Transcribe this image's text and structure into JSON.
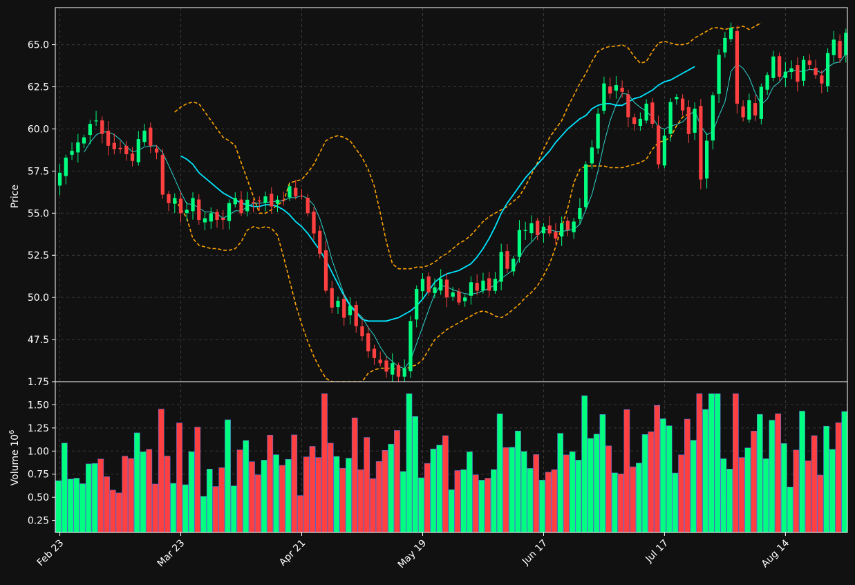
{
  "colors": {
    "background": "#111111",
    "up": "#00ff80",
    "down": "#ff4040",
    "vol_up": "#00ff80",
    "vol_down": "#ff4040",
    "vol_edge": "#5a6fd8",
    "ma_slow": "#00e5ff",
    "ma_fast": "#2fd6cf",
    "bollinger": "#ffa500",
    "grid": "#3a3a3a",
    "axis": "#ffffff"
  },
  "chart_data": {
    "type": "candlestick",
    "price_panel": {
      "ylabel": "Price",
      "ylim": [
        45.0,
        67.2
      ],
      "yticks": [
        "47.5",
        "50.0",
        "52.5",
        "55.0",
        "57.5",
        "60.0",
        "62.5",
        "65.0"
      ],
      "grid": true
    },
    "volume_panel": {
      "ylabel": "Volume  10",
      "ylabel_exponent": "6",
      "ylim": [
        0.12,
        1.75
      ],
      "yticks": [
        "0.25",
        "0.50",
        "0.75",
        "1.00",
        "1.25",
        "1.50",
        "1.75"
      ],
      "grid": true
    },
    "xticks": [
      {
        "index": 0,
        "label": "Feb 23"
      },
      {
        "index": 20,
        "label": "Mar 23"
      },
      {
        "index": 40,
        "label": "Apr 21"
      },
      {
        "index": 60,
        "label": "May 19"
      },
      {
        "index": 80,
        "label": "Jun 17"
      },
      {
        "index": 100,
        "label": "Jul 17"
      },
      {
        "index": 120,
        "label": "Aug 14"
      }
    ],
    "close": [
      57.4,
      58.3,
      58.7,
      59.2,
      59.5,
      60.3,
      60.5,
      59.7,
      59.0,
      58.8,
      58.8,
      58.5,
      58.1,
      59.4,
      59.9,
      59.0,
      58.6,
      56.1,
      55.6,
      55.9,
      55.0,
      55.2,
      55.9,
      54.6,
      54.7,
      55.0,
      54.6,
      54.6,
      55.6,
      55.9,
      55.0,
      55.8,
      55.6,
      55.7,
      56.0,
      55.4,
      55.8,
      55.8,
      56.6,
      56.0,
      56.0,
      55.0,
      53.8,
      52.6,
      50.4,
      49.4,
      49.8,
      48.8,
      49.5,
      48.3,
      47.7,
      46.8,
      46.4,
      46.1,
      45.6,
      46.1,
      45.3,
      45.8,
      48.6,
      50.5,
      51.1,
      50.3,
      50.6,
      51.1,
      50.0,
      50.3,
      49.7,
      50.0,
      50.9,
      50.4,
      51.0,
      50.4,
      51.1,
      52.7,
      51.7,
      52.3,
      54.0,
      54.0,
      54.4,
      53.7,
      54.2,
      53.8,
      53.5,
      54.4,
      54.0,
      54.5,
      55.3,
      57.9,
      58.9,
      60.9,
      62.7,
      62.1,
      62.6,
      62.2,
      60.7,
      60.3,
      60.6,
      61.5,
      60.3,
      57.9,
      59.6,
      61.6,
      61.9,
      61.1,
      59.7,
      61.2,
      57.0,
      59.3,
      62.0,
      64.4,
      65.4,
      66.0,
      61.5,
      60.7,
      61.7,
      60.8,
      62.5,
      63.2,
      64.3,
      63.1,
      63.4,
      63.6,
      62.8,
      64.1,
      63.8,
      63.2,
      62.7,
      64.5,
      65.3,
      64.2,
      65.7
    ],
    "bb_upper": [
      null,
      null,
      null,
      null,
      null,
      null,
      null,
      null,
      null,
      null,
      null,
      null,
      null,
      null,
      null,
      null,
      null,
      null,
      null,
      61.0,
      61.3,
      61.5,
      61.6,
      61.5,
      61.0,
      60.5,
      60.0,
      59.5,
      59.3,
      59.0,
      58.0,
      57.0,
      56.0,
      55.0,
      55.0,
      55.2,
      55.5,
      55.7,
      56.8,
      56.9,
      57.0,
      57.4,
      57.9,
      58.6,
      59.3,
      59.5,
      59.6,
      59.5,
      59.3,
      58.8,
      58.3,
      57.6,
      56.6,
      55.0,
      53.3,
      52.0,
      51.7,
      51.7,
      51.7,
      51.8,
      51.8,
      51.9,
      52.1,
      52.4,
      52.6,
      52.9,
      53.2,
      53.4,
      53.7,
      54.1,
      54.5,
      54.8,
      55.0,
      55.2,
      55.4,
      55.7,
      56.0,
      56.6,
      57.3,
      58.0,
      58.8,
      59.5,
      60.0,
      60.5,
      61.3,
      62.0,
      62.7,
      63.3,
      64.0,
      64.6,
      64.8,
      64.9,
      64.9,
      65.0,
      64.8,
      64.3,
      63.9,
      64.0,
      64.6,
      65.1,
      65.2,
      65.1,
      65.0,
      65.0,
      65.1,
      65.4,
      65.6,
      65.8,
      66.0,
      66.0,
      65.9,
      66.0,
      66.0,
      66.1,
      65.9,
      66.1,
      66.3
    ],
    "bb_lower": [
      null,
      null,
      null,
      null,
      null,
      null,
      null,
      null,
      null,
      null,
      null,
      null,
      null,
      null,
      null,
      null,
      null,
      null,
      null,
      55.8,
      55.3,
      54.7,
      53.5,
      53.1,
      53.0,
      52.9,
      52.9,
      52.8,
      52.8,
      52.9,
      53.3,
      54.0,
      54.2,
      54.1,
      54.2,
      54.1,
      53.7,
      52.4,
      51.0,
      49.6,
      48.4,
      47.4,
      46.5,
      45.8,
      45.2,
      45.0,
      45.0,
      45.0,
      45.0,
      45.0,
      45.0,
      45.5,
      45.7,
      45.8,
      45.8,
      45.8,
      45.7,
      45.7,
      45.9,
      46.0,
      46.3,
      46.9,
      47.5,
      47.8,
      48.1,
      48.3,
      48.5,
      48.7,
      48.9,
      49.1,
      49.2,
      49.1,
      48.9,
      48.8,
      49.0,
      49.3,
      49.6,
      50.0,
      50.3,
      50.7,
      51.3,
      52.0,
      53.0,
      54.2,
      55.3,
      56.8,
      57.6,
      57.8,
      57.8,
      57.8,
      57.8,
      57.7,
      57.7,
      57.7,
      57.8,
      57.9,
      58.0,
      58.2,
      58.8,
      59.2,
      59.3,
      59.5,
      60.2,
      60.7,
      60.9
    ],
    "ma_slow": [
      null,
      null,
      null,
      null,
      null,
      null,
      null,
      null,
      null,
      null,
      null,
      null,
      null,
      null,
      null,
      null,
      null,
      null,
      null,
      null,
      58.4,
      58.2,
      57.9,
      57.4,
      57.1,
      56.8,
      56.5,
      56.2,
      56.0,
      55.8,
      55.6,
      55.5,
      55.4,
      55.4,
      55.5,
      55.5,
      55.4,
      55.2,
      54.9,
      54.5,
      54.2,
      53.8,
      53.3,
      52.8,
      52.2,
      51.5,
      50.8,
      50.1,
      49.5,
      49.1,
      48.7,
      48.6,
      48.6,
      48.6,
      48.6,
      48.7,
      48.8,
      49.0,
      49.2,
      49.5,
      49.9,
      50.4,
      50.9,
      51.2,
      51.4,
      51.5,
      51.6,
      51.8,
      52.0,
      52.4,
      52.9,
      53.5,
      54.2,
      55.0,
      55.6,
      56.1,
      56.6,
      57.1,
      57.5,
      57.9,
      58.3,
      58.7,
      59.2,
      59.6,
      60.0,
      60.3,
      60.6,
      60.8,
      61.2,
      61.4,
      61.5,
      61.5,
      61.4,
      61.4,
      61.6,
      61.8,
      61.9,
      62.1,
      62.3,
      62.6,
      62.8,
      62.9,
      63.1,
      63.3,
      63.5,
      63.7
    ]
  }
}
